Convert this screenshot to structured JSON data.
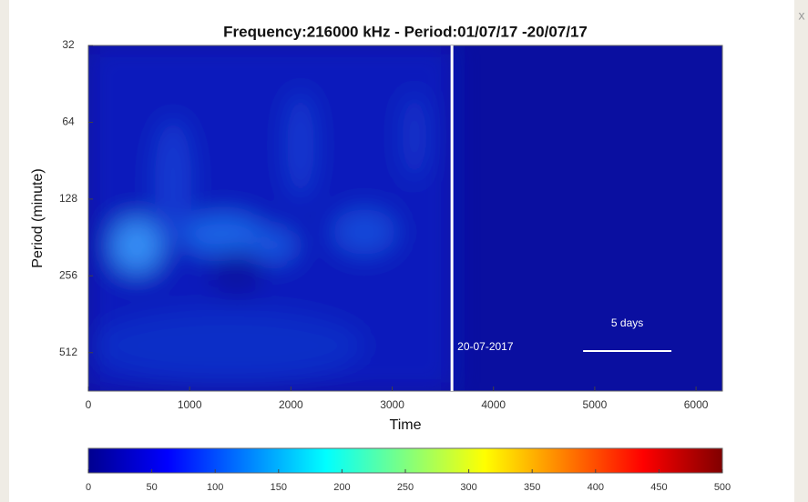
{
  "chart_data": {
    "type": "heatmap",
    "title": "Frequency:216000 kHz - Period:01/07/17 -20/07/17",
    "xlabel": "Time",
    "ylabel": "Period (minute)",
    "xlim": [
      0,
      6260
    ],
    "xticks": [
      0,
      1000,
      2000,
      3000,
      4000,
      5000,
      6000
    ],
    "ylim": [
      32,
      724
    ],
    "yticks": [
      32,
      64,
      128,
      256,
      512
    ],
    "ylog": true,
    "yreversed": true,
    "marker": {
      "x": 3590,
      "label": "20-07-2017"
    },
    "scale_bar": {
      "label": "5 days",
      "x": [
        4885,
        5757
      ]
    },
    "colorbar": {
      "colormap": "jet",
      "lim": [
        0,
        500
      ],
      "ticks": [
        0,
        50,
        100,
        150,
        200,
        250,
        300,
        350,
        400,
        450,
        500
      ]
    }
  },
  "close_button": "x"
}
